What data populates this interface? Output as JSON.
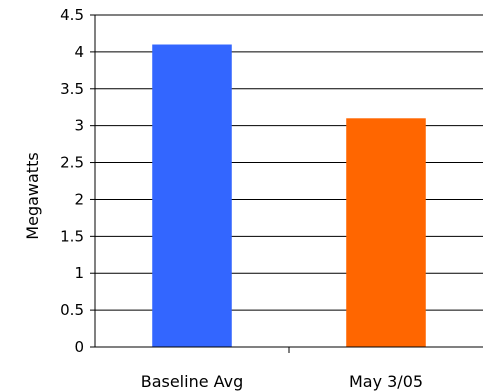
{
  "chart_data": {
    "type": "bar",
    "categories": [
      "Baseline Avg",
      "May 3/05"
    ],
    "values": [
      4.1,
      3.1
    ],
    "colors": [
      "#3366ff",
      "#ff6600"
    ],
    "title": "",
    "xlabel": "",
    "ylabel": "Megawatts",
    "ylim": [
      0,
      4.5
    ],
    "yticks": [
      "0",
      "0.5",
      "1",
      "1.5",
      "2",
      "2.5",
      "3",
      "3.5",
      "4",
      "4.5"
    ],
    "grid": true,
    "legend": "none"
  }
}
